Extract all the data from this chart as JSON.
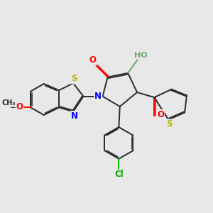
{
  "bg_color": "#e8e8e8",
  "bond_color": "#2a2a2a",
  "bond_width": 1.4,
  "atom_colors": {
    "S": "#b8b800",
    "N": "#0000ff",
    "O": "#ff0000",
    "OH": "#6aaa6a",
    "Cl": "#00aa00"
  },
  "fig_size": [
    3.0,
    3.0
  ],
  "dpi": 100
}
